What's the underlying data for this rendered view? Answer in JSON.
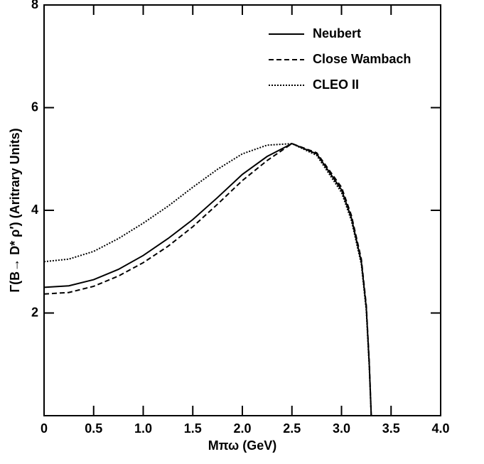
{
  "chart_data": {
    "type": "line",
    "x_label": "Mπω (GeV)",
    "y_label": "Γ(B→ D* ρ′) (Aritrary Units)",
    "xlim": [
      0,
      4
    ],
    "ylim": [
      0,
      8
    ],
    "xticks": [
      0,
      0.5,
      {
        "value": 1,
        "label": "1.0"
      },
      1.5,
      {
        "value": 2,
        "label": "2.0"
      },
      2.5,
      {
        "value": 3,
        "label": "3.0"
      },
      3.5,
      {
        "value": 4,
        "label": "4.0"
      }
    ],
    "yticks": [
      2,
      4,
      6,
      8
    ],
    "legend": "upper right",
    "x": [
      0,
      0.25,
      0.5,
      0.75,
      1.0,
      1.25,
      1.5,
      1.75,
      2.0,
      2.25,
      2.5,
      2.75,
      3.0,
      3.1,
      3.2,
      3.25,
      3.28,
      3.3
    ],
    "series": [
      {
        "name": "Neubert",
        "color": "#000000",
        "dash": "solid",
        "values": [
          2.5,
          2.53,
          2.65,
          2.85,
          3.12,
          3.45,
          3.82,
          4.25,
          4.7,
          5.05,
          5.3,
          5.1,
          4.4,
          3.85,
          3.0,
          2.1,
          1.0,
          0
        ]
      },
      {
        "name": "Close Wambach",
        "color": "#000000",
        "dash": "dashed",
        "values": [
          2.37,
          2.4,
          2.52,
          2.72,
          2.98,
          3.3,
          3.68,
          4.12,
          4.58,
          4.97,
          5.3,
          5.12,
          4.45,
          3.9,
          3.05,
          2.15,
          1.05,
          0
        ]
      },
      {
        "name": "CLEO II",
        "color": "#000000",
        "dash": "dotted",
        "values": [
          3.0,
          3.05,
          3.2,
          3.45,
          3.75,
          4.08,
          4.45,
          4.8,
          5.1,
          5.27,
          5.3,
          5.07,
          4.35,
          3.8,
          2.95,
          2.05,
          0.95,
          0
        ]
      }
    ]
  }
}
